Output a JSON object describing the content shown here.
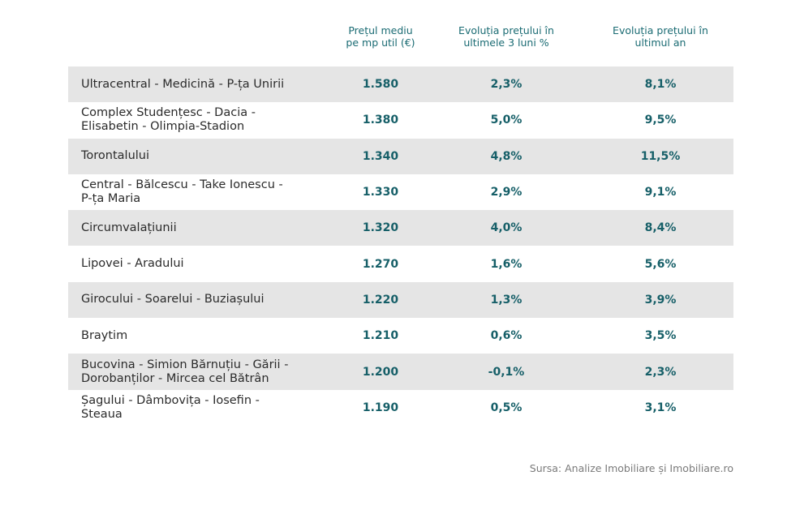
{
  "header": {
    "col1": [
      "Prețul mediu",
      "pe mp util (€)"
    ],
    "col2": [
      "Evoluția prețului în",
      "ultimele 3 luni %"
    ],
    "col3": [
      "Evoluția prețului în",
      "ultimul an"
    ]
  },
  "rows": [
    {
      "name": [
        "Ultracentral - Medicină - P-ța Unirii"
      ],
      "price": "1.580",
      "three_months": "2,3%",
      "one_year": "8,1%"
    },
    {
      "name": [
        "Complex Studențesc - Dacia -",
        "Elisabetin - Olimpia-Stadion"
      ],
      "price": "1.380",
      "three_months": "5,0%",
      "one_year": "9,5%"
    },
    {
      "name": [
        "Torontalului"
      ],
      "price": "1.340",
      "three_months": "4,8%",
      "one_year": "11,5%"
    },
    {
      "name": [
        "Central - Bălcescu - Take Ionescu -",
        "P-ța Maria"
      ],
      "price": "1.330",
      "three_months": "2,9%",
      "one_year": "9,1%"
    },
    {
      "name": [
        "Circumvalațiunii"
      ],
      "price": "1.320",
      "three_months": "4,0%",
      "one_year": "8,4%"
    },
    {
      "name": [
        "Lipovei - Aradului"
      ],
      "price": "1.270",
      "three_months": "1,6%",
      "one_year": "5,6%"
    },
    {
      "name": [
        "Girocului - Soarelui - Buziașului"
      ],
      "price": "1.220",
      "three_months": "1,3%",
      "one_year": "3,9%"
    },
    {
      "name": [
        "Braytim"
      ],
      "price": "1.210",
      "three_months": "0,6%",
      "one_year": "3,5%"
    },
    {
      "name": [
        "Bucovina - Simion Bărnuțiu - Gării -",
        "Dorobanților - Mircea cel Bătrân"
      ],
      "price": "1.200",
      "three_months": "-0,1%",
      "one_year": "2,3%"
    },
    {
      "name": [
        "Șagului - Dâmbovița - Iosefin -",
        "Steaua"
      ],
      "price": "1.190",
      "three_months": "0,5%",
      "one_year": "3,1%"
    }
  ],
  "source": "Sursa: Analize Imobiliare și Imobiliare.ro",
  "colors": {
    "header_text": "#1a6b73",
    "value_text": "#165f68",
    "row_shade": "#e5e5e5"
  }
}
